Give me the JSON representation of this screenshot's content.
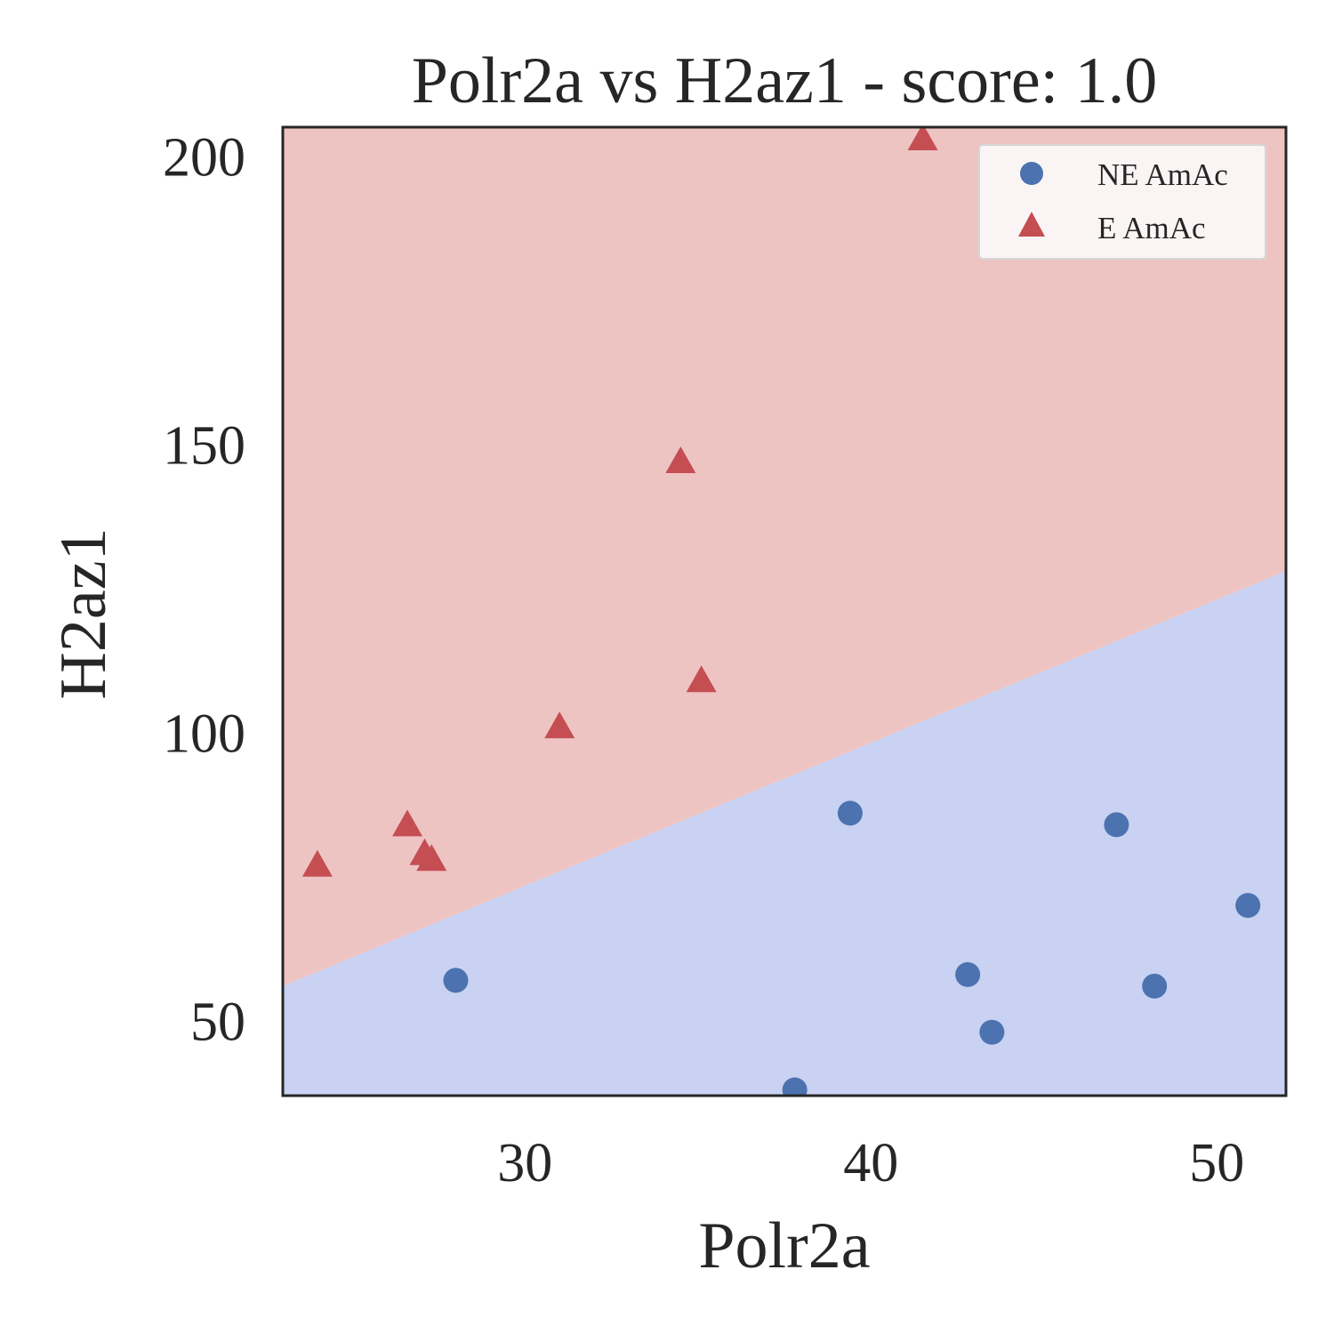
{
  "chart_data": {
    "type": "scatter",
    "title": "Polr2a vs H2az1 - score: 1.0",
    "xlabel": "Polr2a",
    "ylabel": "H2az1",
    "xlim": [
      23,
      52
    ],
    "ylim": [
      37,
      205
    ],
    "xticks": [
      30,
      40,
      50
    ],
    "yticks": [
      50,
      100,
      150,
      200
    ],
    "grid": false,
    "legend_position": "top-right",
    "decision_boundary": {
      "x": [
        23,
        52
      ],
      "y": [
        56,
        128
      ]
    },
    "regions": [
      {
        "name": "E AmAc",
        "side": "above",
        "color": "#EEC4C3"
      },
      {
        "name": "NE AmAc",
        "side": "below",
        "color": "#C9D2F2"
      }
    ],
    "series": [
      {
        "name": "NE AmAc",
        "marker": "circle",
        "color": "#4C72B0",
        "points": [
          [
            28.0,
            57
          ],
          [
            37.8,
            38
          ],
          [
            39.4,
            86
          ],
          [
            42.8,
            58
          ],
          [
            43.5,
            48
          ],
          [
            47.1,
            84
          ],
          [
            48.2,
            56
          ],
          [
            50.9,
            70
          ]
        ]
      },
      {
        "name": "E AmAc",
        "marker": "triangle",
        "color": "#C44E52",
        "points": [
          [
            24.0,
            77
          ],
          [
            26.6,
            84
          ],
          [
            27.1,
            79
          ],
          [
            27.3,
            78
          ],
          [
            31.0,
            101
          ],
          [
            34.5,
            147
          ],
          [
            35.1,
            109
          ],
          [
            41.5,
            203
          ]
        ]
      }
    ]
  }
}
